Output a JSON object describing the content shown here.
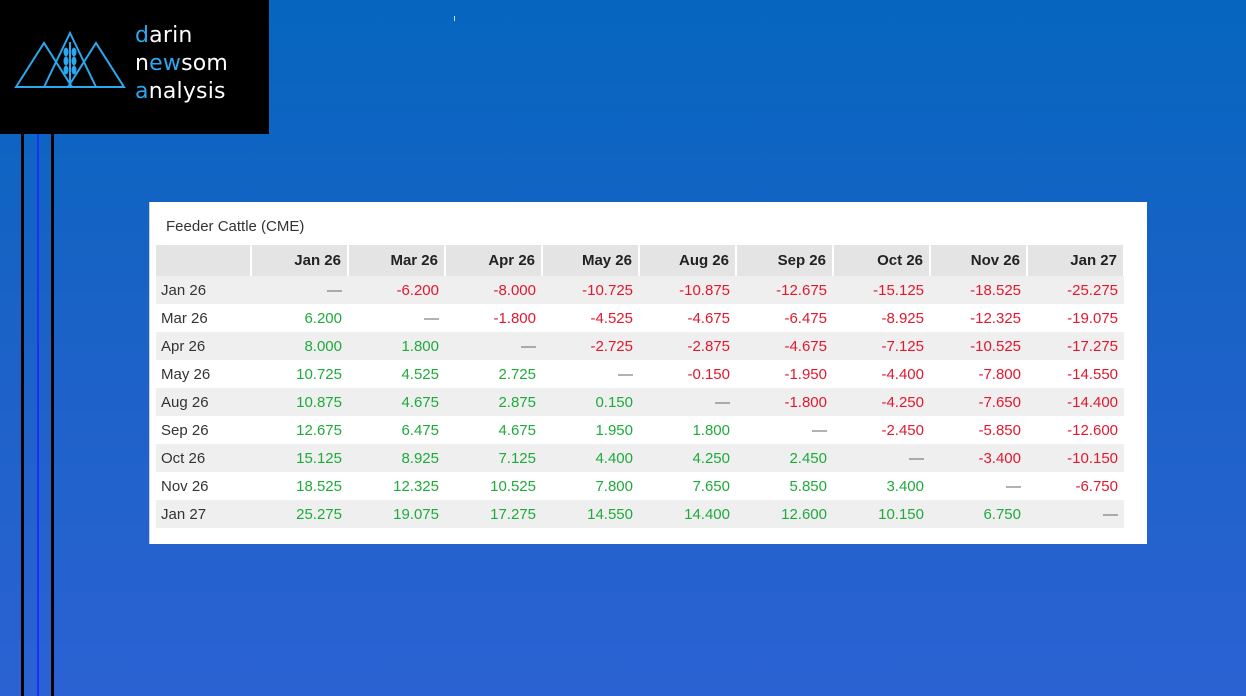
{
  "logo": {
    "line1": {
      "accent": "d",
      "rest": "arin"
    },
    "line2": {
      "pre": "n",
      "accent": "ew",
      "rest": "som"
    },
    "line3": {
      "accent": "a",
      "rest": "nalysis"
    }
  },
  "panel": {
    "title": "Feeder Cattle (CME)",
    "columns": [
      "Jan 26",
      "Mar 26",
      "Apr 26",
      "May 26",
      "Aug 26",
      "Sep 26",
      "Oct 26",
      "Nov 26",
      "Jan 27"
    ],
    "rows": [
      {
        "label": "Jan 26",
        "cells": [
          "—",
          "-6.200",
          "-8.000",
          "-10.725",
          "-10.875",
          "-12.675",
          "-15.125",
          "-18.525",
          "-25.275"
        ]
      },
      {
        "label": "Mar 26",
        "cells": [
          "6.200",
          "—",
          "-1.800",
          "-4.525",
          "-4.675",
          "-6.475",
          "-8.925",
          "-12.325",
          "-19.075"
        ]
      },
      {
        "label": "Apr 26",
        "cells": [
          "8.000",
          "1.800",
          "—",
          "-2.725",
          "-2.875",
          "-4.675",
          "-7.125",
          "-10.525",
          "-17.275"
        ]
      },
      {
        "label": "May 26",
        "cells": [
          "10.725",
          "4.525",
          "2.725",
          "—",
          "-0.150",
          "-1.950",
          "-4.400",
          "-7.800",
          "-14.550"
        ]
      },
      {
        "label": "Aug 26",
        "cells": [
          "10.875",
          "4.675",
          "2.875",
          "0.150",
          "—",
          "-1.800",
          "-4.250",
          "-7.650",
          "-14.400"
        ]
      },
      {
        "label": "Sep 26",
        "cells": [
          "12.675",
          "6.475",
          "4.675",
          "1.950",
          "1.800",
          "—",
          "-2.450",
          "-5.850",
          "-12.600"
        ]
      },
      {
        "label": "Oct 26",
        "cells": [
          "15.125",
          "8.925",
          "7.125",
          "4.400",
          "4.250",
          "2.450",
          "—",
          "-3.400",
          "-10.150"
        ]
      },
      {
        "label": "Nov 26",
        "cells": [
          "18.525",
          "12.325",
          "10.525",
          "7.800",
          "7.650",
          "5.850",
          "3.400",
          "—",
          "-6.750"
        ]
      },
      {
        "label": "Jan 27",
        "cells": [
          "25.275",
          "19.075",
          "17.275",
          "14.550",
          "14.400",
          "12.600",
          "10.150",
          "6.750",
          "—"
        ]
      }
    ]
  },
  "colors": {
    "positive": "#1faa3c",
    "negative": "#e0192f",
    "logo_accent": "#2aa8f0"
  }
}
